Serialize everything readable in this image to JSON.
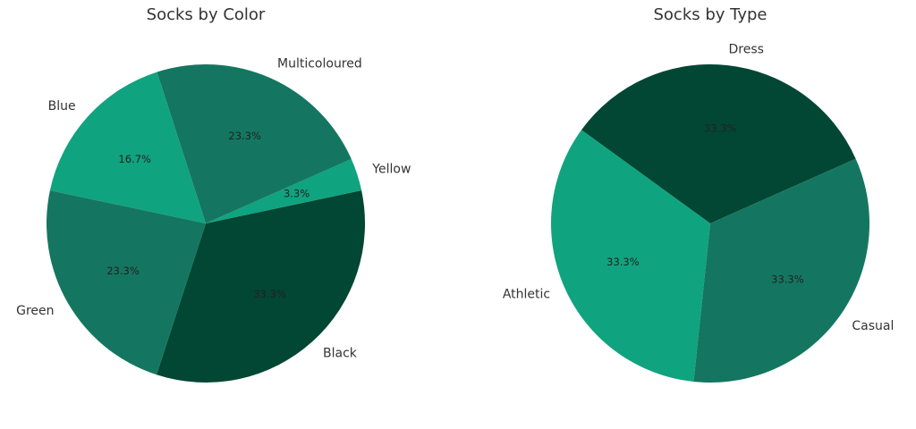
{
  "chart_data": [
    {
      "type": "pie",
      "title": "Socks by Color",
      "categories": [
        "Black",
        "Yellow",
        "Multicoloured",
        "Blue",
        "Green"
      ],
      "values": [
        33.3,
        3.3,
        23.3,
        16.7,
        23.3
      ],
      "labels": [
        "33.3%",
        "3.3%",
        "23.3%",
        "16.7%",
        "23.3%"
      ],
      "colors": [
        "#024634",
        "#10a37f",
        "#147660",
        "#10a37f",
        "#147660"
      ],
      "start_angle_deg": -108,
      "direction": "counterclockwise"
    },
    {
      "type": "pie",
      "title": "Socks by Type",
      "categories": [
        "Dress",
        "Athletic",
        "Casual"
      ],
      "values": [
        33.3,
        33.3,
        33.3
      ],
      "labels": [
        "33.3%",
        "33.3%",
        "33.3%"
      ],
      "colors": [
        "#024634",
        "#10a37f",
        "#147660"
      ],
      "start_angle_deg": 24,
      "direction": "counterclockwise"
    }
  ]
}
